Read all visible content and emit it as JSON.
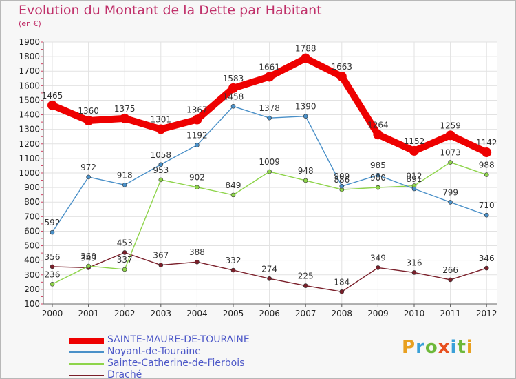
{
  "header": {
    "title": "Evolution du Montant de la Dette par Habitant",
    "unit": "(en €)"
  },
  "brand": {
    "letters": [
      "P",
      "r",
      "o",
      "x",
      "i",
      "t",
      "i"
    ],
    "colors": [
      "#e8a020",
      "#3aa0d8",
      "#6db83a",
      "#e85020",
      "#3aa0d8",
      "#6db83a",
      "#e8a020"
    ]
  },
  "chart_data": {
    "type": "line",
    "title": "Evolution du Montant de la Dette par Habitant",
    "subtitle": "(en €)",
    "xlabel": "",
    "ylabel": "",
    "x": [
      "2000",
      "2001",
      "2002",
      "2003",
      "2004",
      "2005",
      "2006",
      "2007",
      "2008",
      "2009",
      "2010",
      "2011",
      "2012"
    ],
    "ylim": [
      100,
      1900
    ],
    "yticks": [
      100,
      200,
      300,
      400,
      500,
      600,
      700,
      800,
      900,
      1000,
      1100,
      1200,
      1300,
      1400,
      1500,
      1600,
      1700,
      1800,
      1900
    ],
    "grid": true,
    "legend_position": "bottom-left",
    "series": [
      {
        "name": "SAINTE-MAURE-DE-TOURAINE",
        "color": "#ee0000",
        "values": [
          1465,
          1360,
          1375,
          1301,
          1367,
          1583,
          1661,
          1788,
          1663,
          1264,
          1152,
          1259,
          1142
        ],
        "labels": [
          "1465",
          "1360",
          "1375",
          "1301",
          "1367",
          "1583",
          "1661",
          "1788",
          "1663",
          "1264",
          "1152",
          "1259",
          "1142"
        ]
      },
      {
        "name": "Noyant-de-Touraine",
        "color": "#4a90c8",
        "values": [
          592,
          972,
          918,
          1058,
          1192,
          1458,
          1378,
          1390,
          909,
          985,
          891,
          799,
          710
        ],
        "labels": [
          "592",
          "972",
          "918",
          "1058",
          "1192",
          "1458",
          "1378",
          "1390",
          "909",
          "985",
          "891",
          "799",
          "710"
        ]
      },
      {
        "name": "Sainte-Catherine-de-Fierbois",
        "color": "#8ed44a",
        "values": [
          236,
          360,
          337,
          953,
          902,
          849,
          1009,
          948,
          886,
          900,
          912,
          1073,
          988
        ],
        "labels": [
          "236",
          "360",
          "337",
          "953",
          "902",
          "849",
          "1009",
          "948",
          "886",
          "900",
          "912",
          "1073",
          "988"
        ]
      },
      {
        "name": "Draché",
        "color": "#7a1f2a",
        "values": [
          356,
          349,
          453,
          367,
          388,
          332,
          274,
          225,
          184,
          349,
          316,
          266,
          346
        ],
        "labels": [
          "356",
          "349",
          "453",
          "367",
          "388",
          "332",
          "274",
          "225",
          "184",
          "349",
          "316",
          "266",
          "346"
        ]
      }
    ]
  }
}
